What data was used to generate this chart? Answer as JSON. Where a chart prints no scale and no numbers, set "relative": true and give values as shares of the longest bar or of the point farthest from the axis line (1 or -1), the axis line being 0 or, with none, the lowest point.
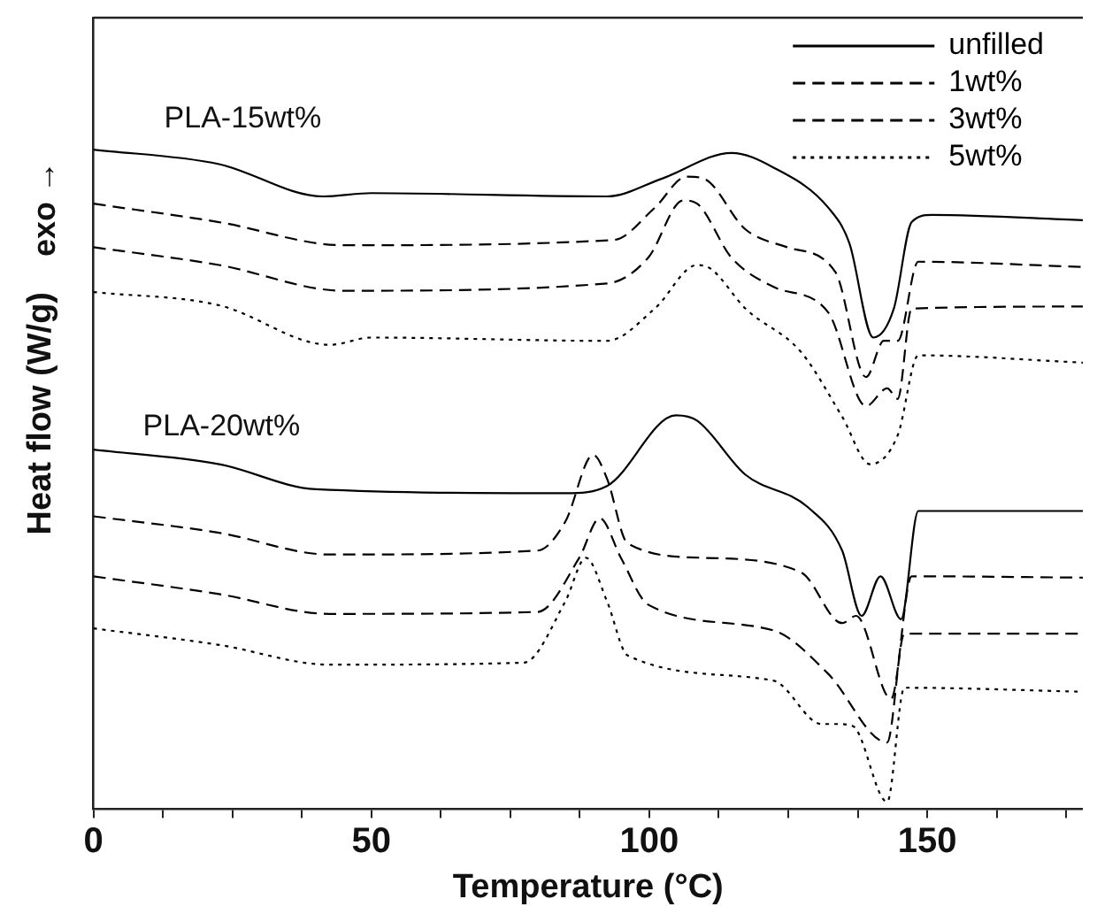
{
  "chart_data": {
    "type": "line",
    "relative": true,
    "xlabel": "Temperature (°C)",
    "ylabel": "Heat flow (W/g)",
    "xlim": [
      0,
      178
    ],
    "xticks": [
      0,
      {
        "value": 12.5,
        "label": null
      },
      {
        "value": 25,
        "label": null
      },
      {
        "value": 37.5,
        "label": null
      },
      50,
      {
        "value": 62.5,
        "label": null
      },
      {
        "value": 75,
        "label": null
      },
      {
        "value": 87.5,
        "label": null
      },
      100,
      {
        "value": 112.5,
        "label": null
      },
      {
        "value": 125,
        "label": null
      },
      {
        "value": 137.5,
        "label": null
      },
      150,
      {
        "value": 162.5,
        "label": null
      },
      {
        "value": 175,
        "label": null
      }
    ],
    "annotations": [
      "PLA-15wt%",
      "PLA-20wt%",
      "exo →"
    ],
    "legend": "top right",
    "marker": "none",
    "grid": false,
    "series": [
      {
        "name": "unfilled",
        "color": "#000000",
        "line_style": "solid",
        "x": [
          0,
          22.6,
          41.3,
          50,
          92.4,
          102.3,
          114.8,
          122.3,
          132.2,
          136,
          140.3,
          144,
          147.2,
          150.9,
          178
        ],
        "values": [
          1.0,
          0.978,
          0.929,
          0.934,
          0.929,
          0.956,
          0.995,
          0.973,
          0.912,
          0.858,
          0.715,
          0.759,
          0.89,
          0.901,
          0.893
        ]
      },
      {
        "name": "1wt%",
        "color": "#000000",
        "line_style": "dashed",
        "x": [
          0,
          22.6,
          45,
          93.6,
          101,
          106.7,
          109.8,
          117.3,
          124.8,
          133.5,
          139,
          142.2,
          144.7,
          148.4,
          178
        ],
        "values": [
          0.918,
          0.89,
          0.855,
          0.863,
          0.912,
          0.959,
          0.956,
          0.879,
          0.852,
          0.814,
          0.655,
          0.71,
          0.71,
          0.83,
          0.822
        ]
      },
      {
        "name": "3wt%",
        "color": "#000000",
        "line_style": "dashed",
        "x": [
          0,
          22.6,
          45,
          92.4,
          99.8,
          106.1,
          108.6,
          114.8,
          122.3,
          132.2,
          139,
          142.8,
          144.7,
          147.2,
          178
        ],
        "values": [
          0.852,
          0.825,
          0.786,
          0.797,
          0.836,
          0.923,
          0.918,
          0.836,
          0.792,
          0.753,
          0.611,
          0.638,
          0.622,
          0.759,
          0.762
        ]
      },
      {
        "name": "5wt%",
        "color": "#000000",
        "line_style": "dotted",
        "x": [
          0,
          22.6,
          42.5,
          50,
          92.4,
          101,
          108.6,
          111.1,
          117.3,
          127.3,
          134.7,
          139.7,
          144.7,
          148.4,
          178
        ],
        "values": [
          0.784,
          0.764,
          0.704,
          0.715,
          0.71,
          0.759,
          0.825,
          0.819,
          0.759,
          0.693,
          0.595,
          0.523,
          0.567,
          0.688,
          0.677
        ]
      },
      {
        "color": "#000000",
        "line_style": "solid",
        "x": [
          0,
          22.6,
          40,
          84.9,
          92.4,
          104.8,
          108.6,
          117.3,
          128.5,
          134.7,
          138.2,
          141.6,
          145.3,
          148.4,
          178
        ],
        "values": [
          0.545,
          0.523,
          0.485,
          0.479,
          0.49,
          0.597,
          0.589,
          0.507,
          0.458,
          0.392,
          0.293,
          0.353,
          0.288,
          0.452,
          0.452
        ]
      },
      {
        "color": "#000000",
        "line_style": "dashed",
        "x": [
          0,
          22.6,
          42.5,
          79.9,
          84.9,
          89.9,
          92.4,
          96.1,
          109.8,
          127.3,
          134.7,
          137.2,
          143.5,
          147.2,
          178
        ],
        "values": [
          0.444,
          0.419,
          0.386,
          0.392,
          0.436,
          0.537,
          0.501,
          0.403,
          0.381,
          0.359,
          0.282,
          0.293,
          0.167,
          0.353,
          0.351
        ]
      },
      {
        "color": "#000000",
        "line_style": "dashed",
        "x": [
          0,
          22.6,
          42.5,
          79.9,
          87.4,
          91.1,
          94.9,
          99.8,
          122.3,
          132.2,
          142.8,
          145.9,
          178
        ],
        "values": [
          0.353,
          0.326,
          0.296,
          0.299,
          0.381,
          0.441,
          0.381,
          0.31,
          0.271,
          0.205,
          0.101,
          0.266,
          0.266
        ]
      },
      {
        "color": "#000000",
        "line_style": "dotted",
        "x": [
          0,
          22.6,
          42.5,
          77.4,
          84.9,
          88.6,
          92.4,
          96.1,
          122.3,
          131,
          133.5,
          136.6,
          142.8,
          145.9,
          178
        ],
        "values": [
          0.274,
          0.249,
          0.219,
          0.222,
          0.315,
          0.381,
          0.315,
          0.233,
          0.195,
          0.129,
          0.129,
          0.126,
          0.011,
          0.184,
          0.178
        ]
      }
    ]
  }
}
